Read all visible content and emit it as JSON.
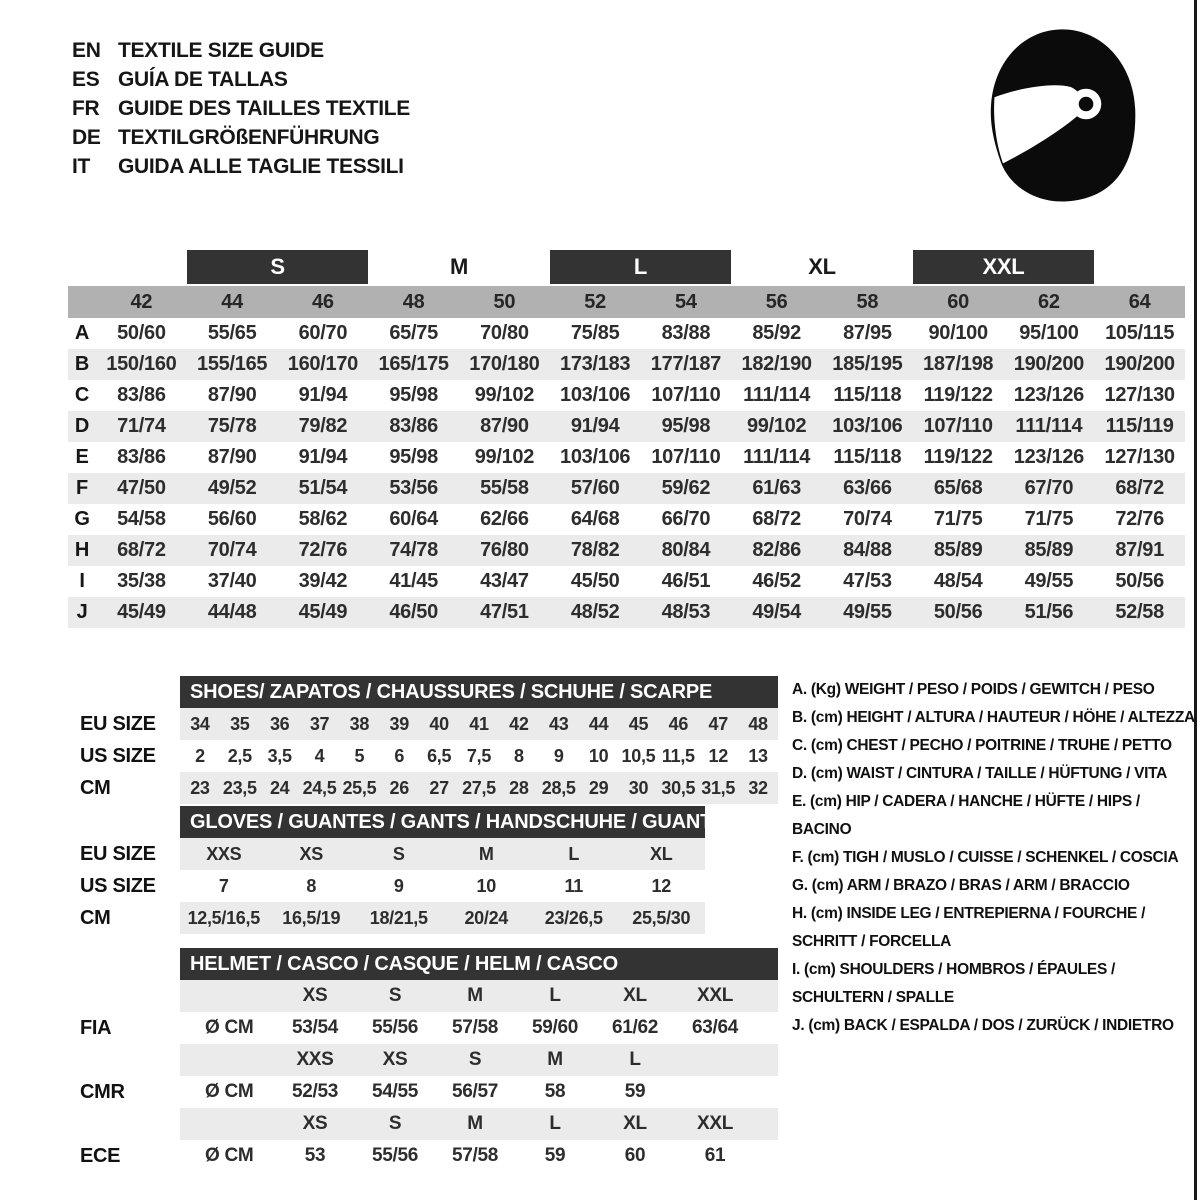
{
  "languages": [
    {
      "code": "EN",
      "title": "TEXTILE SIZE GUIDE"
    },
    {
      "code": "ES",
      "title": "GUÍA DE TALLAS"
    },
    {
      "code": "FR",
      "title": "GUIDE DES TAILLES TEXTILE"
    },
    {
      "code": "DE",
      "title": "TEXTILGRÖßENFÜHRUNG"
    },
    {
      "code": "IT",
      "title": "GUIDA ALLE TAGLIE TESSILI"
    }
  ],
  "icon": "racing-helmet-icon",
  "main_table": {
    "size_groups": [
      {
        "label": "S",
        "boxed": true
      },
      {
        "label": "M",
        "boxed": false
      },
      {
        "label": "L",
        "boxed": true
      },
      {
        "label": "XL",
        "boxed": false
      },
      {
        "label": "XXL",
        "boxed": true
      }
    ],
    "columns": [
      "42",
      "44",
      "46",
      "48",
      "50",
      "52",
      "54",
      "56",
      "58",
      "60",
      "62",
      "64"
    ],
    "rows": [
      {
        "letter": "A",
        "values": [
          "50/60",
          "55/65",
          "60/70",
          "65/75",
          "70/80",
          "75/85",
          "83/88",
          "85/92",
          "87/95",
          "90/100",
          "95/100",
          "105/115"
        ]
      },
      {
        "letter": "B",
        "values": [
          "150/160",
          "155/165",
          "160/170",
          "165/175",
          "170/180",
          "173/183",
          "177/187",
          "182/190",
          "185/195",
          "187/198",
          "190/200",
          "190/200"
        ]
      },
      {
        "letter": "C",
        "values": [
          "83/86",
          "87/90",
          "91/94",
          "95/98",
          "99/102",
          "103/106",
          "107/110",
          "111/114",
          "115/118",
          "119/122",
          "123/126",
          "127/130"
        ]
      },
      {
        "letter": "D",
        "values": [
          "71/74",
          "75/78",
          "79/82",
          "83/86",
          "87/90",
          "91/94",
          "95/98",
          "99/102",
          "103/106",
          "107/110",
          "111/114",
          "115/119"
        ]
      },
      {
        "letter": "E",
        "values": [
          "83/86",
          "87/90",
          "91/94",
          "95/98",
          "99/102",
          "103/106",
          "107/110",
          "111/114",
          "115/118",
          "119/122",
          "123/126",
          "127/130"
        ]
      },
      {
        "letter": "F",
        "values": [
          "47/50",
          "49/52",
          "51/54",
          "53/56",
          "55/58",
          "57/60",
          "59/62",
          "61/63",
          "63/66",
          "65/68",
          "67/70",
          "68/72"
        ]
      },
      {
        "letter": "G",
        "values": [
          "54/58",
          "56/60",
          "58/62",
          "60/64",
          "62/66",
          "64/68",
          "66/70",
          "68/72",
          "70/74",
          "71/75",
          "71/75",
          "72/76"
        ]
      },
      {
        "letter": "H",
        "values": [
          "68/72",
          "70/74",
          "72/76",
          "74/78",
          "76/80",
          "78/82",
          "80/84",
          "82/86",
          "84/88",
          "85/89",
          "85/89",
          "87/91"
        ]
      },
      {
        "letter": "I",
        "values": [
          "35/38",
          "37/40",
          "39/42",
          "41/45",
          "43/47",
          "45/50",
          "46/51",
          "46/52",
          "47/53",
          "48/54",
          "49/55",
          "50/56"
        ]
      },
      {
        "letter": "J",
        "values": [
          "45/49",
          "44/48",
          "45/49",
          "46/50",
          "47/51",
          "48/52",
          "48/53",
          "49/54",
          "49/55",
          "50/56",
          "51/56",
          "52/58"
        ]
      }
    ]
  },
  "shoes": {
    "title": "SHOES/ ZAPATOS / CHAUSSURES / SCHUHE / SCARPE",
    "row_labels": [
      "EU SIZE",
      "US SIZE",
      "CM"
    ],
    "eu": [
      "34",
      "35",
      "36",
      "37",
      "38",
      "39",
      "40",
      "41",
      "42",
      "43",
      "44",
      "45",
      "46",
      "47",
      "48"
    ],
    "us": [
      "2",
      "2,5",
      "3,5",
      "4",
      "5",
      "6",
      "6,5",
      "7,5",
      "8",
      "9",
      "10",
      "10,5",
      "11,5",
      "12",
      "13"
    ],
    "cm": [
      "23",
      "23,5",
      "24",
      "24,5",
      "25,5",
      "26",
      "27",
      "27,5",
      "28",
      "28,5",
      "29",
      "30",
      "30,5",
      "31,5",
      "32"
    ]
  },
  "gloves": {
    "title": "GLOVES / GUANTES / GANTS / HANDSCHUHE / GUANTI",
    "row_labels": [
      "EU SIZE",
      "US SIZE",
      "CM"
    ],
    "eu": [
      "XXS",
      "XS",
      "S",
      "M",
      "L",
      "XL"
    ],
    "us": [
      "7",
      "8",
      "9",
      "10",
      "11",
      "12"
    ],
    "cm": [
      "12,5/16,5",
      "16,5/19",
      "18/21,5",
      "20/24",
      "23/26,5",
      "25,5/30"
    ]
  },
  "helmet": {
    "title": "HELMET / CASCO / CASQUE / HELM / CASCO",
    "standards": [
      {
        "name": "FIA",
        "diameter_label": "Ø CM",
        "sizes": [
          "XS",
          "S",
          "M",
          "L",
          "XL",
          "XXL"
        ],
        "values": [
          "53/54",
          "55/56",
          "57/58",
          "59/60",
          "61/62",
          "63/64"
        ]
      },
      {
        "name": "CMR",
        "diameter_label": "Ø CM",
        "sizes": [
          "XXS",
          "XS",
          "S",
          "M",
          "L",
          ""
        ],
        "values": [
          "52/53",
          "54/55",
          "56/57",
          "58",
          "59",
          ""
        ]
      },
      {
        "name": "ECE",
        "diameter_label": "Ø CM",
        "sizes": [
          "XS",
          "S",
          "M",
          "L",
          "XL",
          "XXL"
        ],
        "values": [
          "53",
          "55/56",
          "57/58",
          "59",
          "60",
          "61"
        ]
      }
    ]
  },
  "legend": [
    "A. (Kg) WEIGHT / PESO / POIDS / GEWITCH / PESO",
    "B. (cm) HEIGHT / ALTURA / HAUTEUR / HÖHE / ALTEZZA",
    "C. (cm) CHEST / PECHO / POITRINE / TRUHE / PETTO",
    "D. (cm) WAIST / CINTURA / TAILLE / HÜFTUNG / VITA",
    "E. (cm) HIP / CADERA / HANCHE / HÜFTE / HIPS / BACINO",
    "F. (cm) TIGH / MUSLO / CUISSE / SCHENKEL / COSCIA",
    "G. (cm) ARM / BRAZO / BRAS / ARM / BRACCIO",
    "H. (cm) INSIDE LEG / ENTREPIERNA / FOURCHE / SCHRITT / FORCELLA",
    "I. (cm) SHOULDERS / HOMBROS / ÉPAULES / SCHULTERN / SPALLE",
    "J. (cm) BACK / ESPALDA / DOS / ZURÜCK / INDIETRO"
  ],
  "colors": {
    "bar_dark": "#333333",
    "band_gray": "#b1b1b1",
    "stripe_gray": "#ebebeb",
    "text": "#1a1a1a"
  }
}
